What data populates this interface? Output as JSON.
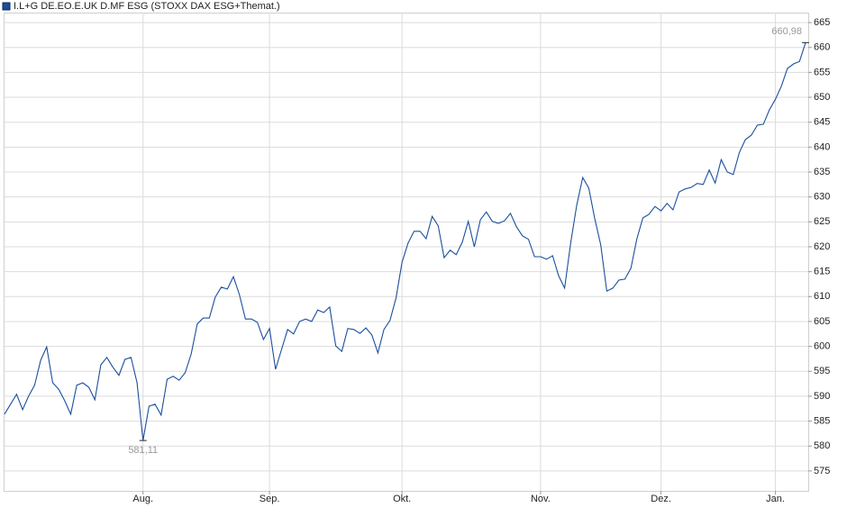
{
  "chart_data": {
    "type": "line",
    "title": "I.L+G DE.EO.E.UK D.MF ESG (STOXX DAX ESG+Themat.)",
    "categories": [
      null,
      null,
      null,
      null,
      null,
      null,
      null,
      null,
      null,
      null,
      null,
      null,
      null,
      null,
      null,
      null,
      null,
      null,
      null,
      null,
      null,
      null,
      null,
      "Aug.",
      null,
      null,
      null,
      null,
      null,
      null,
      null,
      null,
      null,
      null,
      null,
      null,
      null,
      null,
      null,
      null,
      null,
      null,
      null,
      null,
      "Sep.",
      null,
      null,
      null,
      null,
      null,
      null,
      null,
      null,
      null,
      null,
      null,
      null,
      null,
      null,
      null,
      null,
      null,
      null,
      null,
      null,
      null,
      "Okt.",
      null,
      null,
      null,
      null,
      null,
      null,
      null,
      null,
      null,
      null,
      null,
      null,
      null,
      null,
      null,
      null,
      null,
      null,
      null,
      null,
      null,
      null,
      "Nov.",
      null,
      null,
      null,
      null,
      null,
      null,
      null,
      null,
      null,
      null,
      null,
      null,
      null,
      null,
      null,
      null,
      null,
      null,
      null,
      "Dez.",
      null,
      null,
      null,
      null,
      null,
      null,
      null,
      null,
      null,
      null,
      null,
      null,
      null,
      null,
      null,
      null,
      null,
      null,
      "Jan.",
      null,
      null,
      null,
      null,
      null
    ],
    "series": [
      {
        "name": "I.L+G DE.EO.E.UK D.MF ESG (STOXX DAX ESG+Themat.)",
        "color": "#1b4f9c",
        "values": [
          586.4,
          588.4,
          590.4,
          587.3,
          590,
          592.2,
          597.2,
          599.9,
          592.7,
          591.4,
          589.1,
          586.4,
          592.2,
          592.7,
          591.8,
          589.3,
          596.3,
          597.8,
          595.8,
          594.2,
          597.4,
          597.8,
          592.7,
          581.11,
          588,
          588.4,
          586.2,
          593.4,
          594,
          593.2,
          594.7,
          598.5,
          604.5,
          605.7,
          605.7,
          609.9,
          611.9,
          611.5,
          614,
          610.4,
          605.5,
          605.5,
          604.8,
          601.4,
          603.6,
          595.4,
          599.4,
          603.4,
          602.5,
          605,
          605.5,
          605,
          607.3,
          606.8,
          607.9,
          600.1,
          599,
          603.6,
          603.4,
          602.6,
          603.7,
          602.3,
          598.7,
          603.4,
          605.2,
          609.7,
          616.9,
          620.7,
          623.1,
          623.1,
          621.6,
          626.1,
          624.2,
          617.8,
          619.3,
          618.4,
          620.9,
          625.1,
          620,
          625.4,
          627,
          625.1,
          624.7,
          625.2,
          626.7,
          624,
          622.2,
          621.5,
          618,
          618,
          617.5,
          618.2,
          614.2,
          611.7,
          620.7,
          628.3,
          633.9,
          631.8,
          625.6,
          620.4,
          611.1,
          611.7,
          613.3,
          613.5,
          615.7,
          621.6,
          625.8,
          626.5,
          628.1,
          627.2,
          628.7,
          627.4,
          631,
          631.6,
          631.9,
          632.7,
          632.5,
          635.4,
          632.8,
          637.5,
          635,
          634.5,
          638.9,
          641.5,
          642.4,
          644.4,
          644.6,
          647.5,
          649.6,
          652.3,
          655.8,
          656.7,
          657.2,
          660.98
        ],
        "value_labels": [
          null,
          null,
          null,
          null,
          null,
          null,
          null,
          null,
          null,
          null,
          null,
          null,
          null,
          null,
          null,
          null,
          null,
          null,
          null,
          null,
          null,
          null,
          null,
          "581,11",
          null,
          null,
          null,
          null,
          null,
          null,
          null,
          null,
          null,
          null,
          null,
          null,
          null,
          null,
          null,
          null,
          null,
          null,
          null,
          null,
          null,
          null,
          null,
          null,
          null,
          null,
          null,
          null,
          null,
          null,
          null,
          null,
          null,
          null,
          null,
          null,
          null,
          null,
          null,
          null,
          null,
          null,
          null,
          null,
          null,
          null,
          null,
          null,
          null,
          null,
          null,
          null,
          null,
          null,
          null,
          null,
          null,
          null,
          null,
          null,
          null,
          null,
          null,
          null,
          null,
          null,
          null,
          null,
          null,
          null,
          null,
          null,
          null,
          null,
          null,
          null,
          null,
          null,
          null,
          null,
          null,
          null,
          null,
          null,
          null,
          null,
          null,
          null,
          null,
          null,
          null,
          null,
          null,
          null,
          null,
          null,
          null,
          null,
          null,
          null,
          null,
          null,
          null,
          null,
          null,
          null,
          null,
          null,
          null,
          "660,98"
        ]
      }
    ],
    "ylim": [
      571,
      667
    ],
    "yticks": [
      575,
      580,
      585,
      590,
      595,
      600,
      605,
      610,
      615,
      620,
      625,
      630,
      635,
      640,
      645,
      650,
      655,
      660,
      665
    ],
    "grid": true
  }
}
